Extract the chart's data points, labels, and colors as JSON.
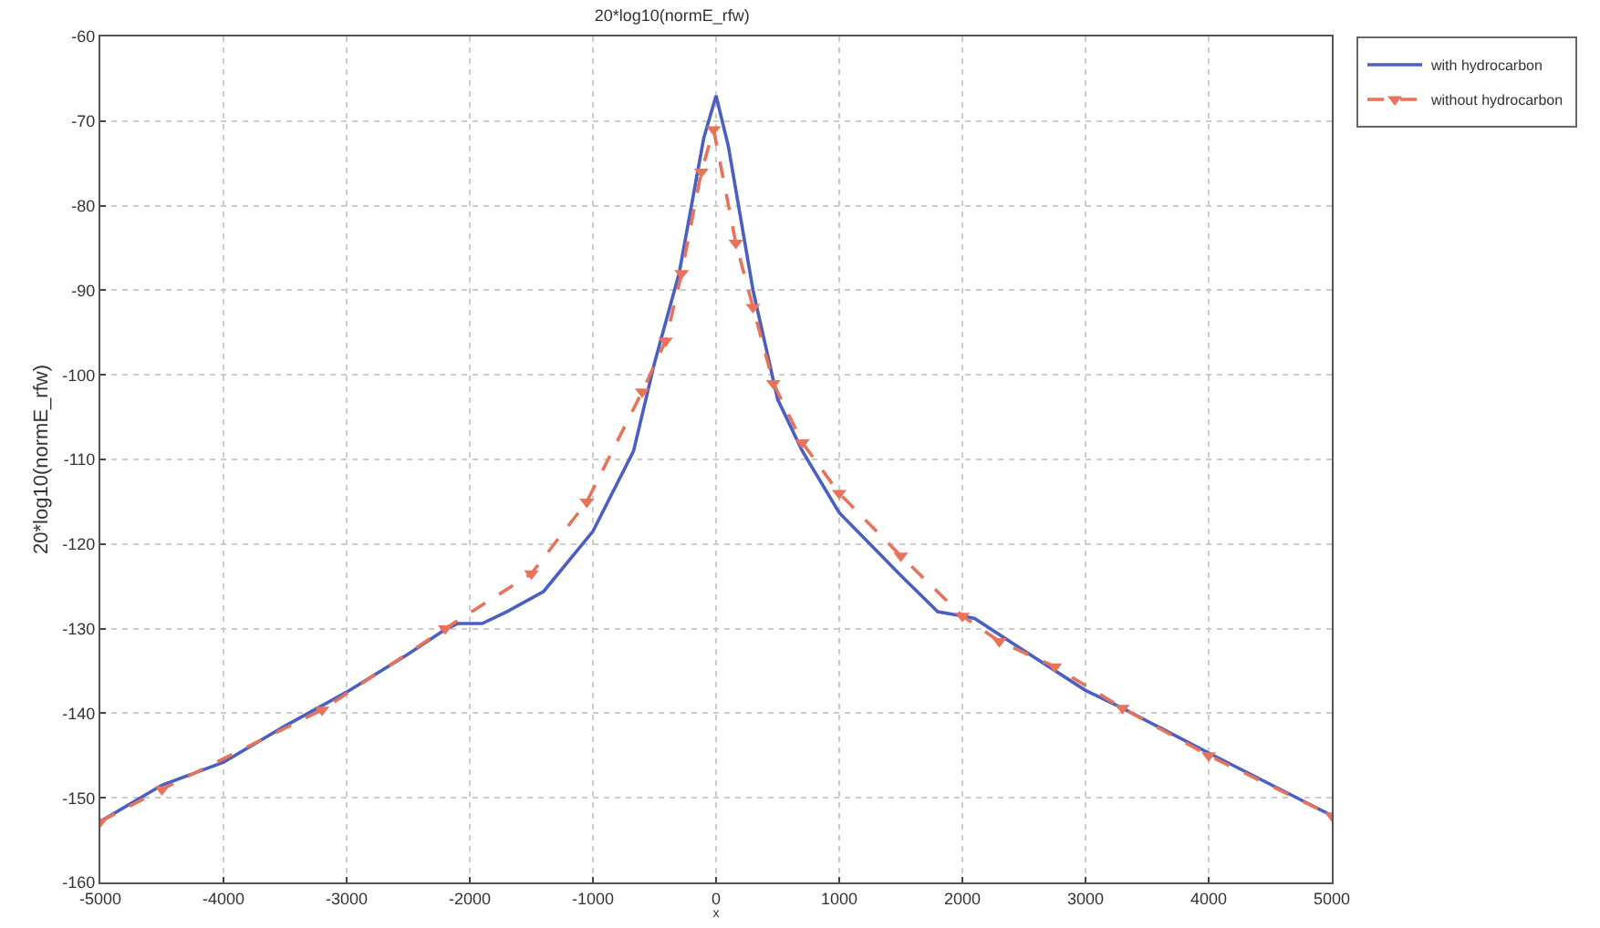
{
  "chart_data": {
    "type": "line",
    "title": "20*log10(normE_rfw)",
    "xlabel": "x",
    "ylabel": "20*log10(normE_rfw)",
    "xlim": [
      -5000,
      5000
    ],
    "xticks": [
      -5000,
      -4000,
      -3000,
      -2000,
      -1000,
      0,
      1000,
      2000,
      3000,
      4000,
      5000
    ],
    "ylim": [
      -160,
      -60
    ],
    "yticks": [
      -160,
      -150,
      -140,
      -130,
      -120,
      -110,
      -100,
      -90,
      -80,
      -70,
      -60
    ],
    "grid": true,
    "legend": "top right",
    "series": [
      {
        "name": "with hydrocarbon",
        "color": "#4a5fc1",
        "line_style": "solid",
        "marker": "none",
        "x": [
          -5000,
          -4500,
          -4000,
          -3500,
          -3000,
          -2500,
          -2200,
          -2100,
          -1900,
          -1700,
          -1400,
          -1000,
          -670,
          -500,
          -300,
          -100,
          0,
          100,
          300,
          500,
          700,
          1000,
          1500,
          1800,
          2000,
          2100,
          2500,
          3000,
          3300,
          4000,
          5000
        ],
        "values": [
          -152.8,
          -148.5,
          -145.8,
          -141.5,
          -137.5,
          -133,
          -130.1,
          -129.4,
          -129.4,
          -128,
          -125.6,
          -118.5,
          -109,
          -98.6,
          -88,
          -72,
          -67,
          -73,
          -90,
          -102.9,
          -109,
          -116.3,
          -123.7,
          -128,
          -128.5,
          -128.8,
          -132.6,
          -137.3,
          -139.4,
          -144.7,
          -152.1
        ]
      },
      {
        "name": "without hydrocarbon",
        "color": "#e8735a",
        "line_style": "dashed",
        "marker": "triangle",
        "x": [
          -5000,
          -4500,
          -3200,
          -2200,
          -1500,
          -1050,
          -600,
          -410,
          -280,
          -120,
          -20,
          160,
          300,
          465,
          700,
          1000,
          1500,
          2000,
          2300,
          2750,
          3300,
          4000,
          5000
        ],
        "values": [
          -152.8,
          -149,
          -139.6,
          -130,
          -123.5,
          -115,
          -102,
          -96,
          -88,
          -76,
          -71,
          -84.4,
          -92,
          -101,
          -108,
          -114,
          -121.4,
          -128.5,
          -131.5,
          -134.5,
          -139.4,
          -145,
          -152.1
        ]
      }
    ]
  }
}
